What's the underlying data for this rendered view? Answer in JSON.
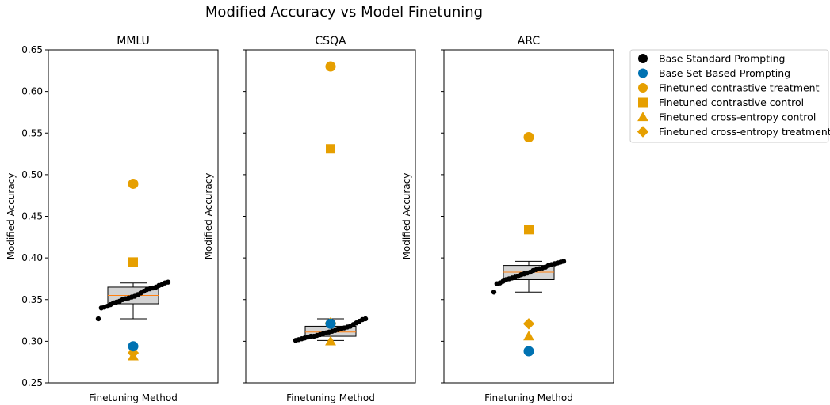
{
  "title": "Modified Accuracy vs Model Finetuning",
  "colors": {
    "base_standard": "#000000",
    "base_set": "#0072b2",
    "finetuned": "#e69f00",
    "box_fill": "#d3d3d3",
    "median": "#ff7f0e"
  },
  "legend": {
    "placement": "right-outside",
    "entries": [
      {
        "label": "Base Standard Prompting",
        "marker": "circle",
        "color": "#000000"
      },
      {
        "label": "Base Set-Based-Prompting",
        "marker": "circle",
        "color": "#0072b2"
      },
      {
        "label": "Finetuned contrastive treatment",
        "marker": "circle",
        "color": "#e69f00"
      },
      {
        "label": "Finetuned contrastive control",
        "marker": "square",
        "color": "#e69f00"
      },
      {
        "label": "Finetuned cross-entropy control",
        "marker": "triangle",
        "color": "#e69f00"
      },
      {
        "label": "Finetuned cross-entropy treatment",
        "marker": "diamond",
        "color": "#e69f00"
      }
    ]
  },
  "chart_data": [
    {
      "type": "scatter",
      "title": "MMLU",
      "xlabel": "Finetuning Method",
      "ylabel": "Modified Accuracy",
      "ylim": [
        0.25,
        0.65
      ],
      "yticks": [
        "0.25",
        "0.30",
        "0.35",
        "0.40",
        "0.45",
        "0.50",
        "0.55",
        "0.60",
        "0.65"
      ],
      "grid": false,
      "box": {
        "whisker_low": 0.327,
        "q1": 0.345,
        "median": 0.355,
        "q3": 0.365,
        "whisker_high": 0.37
      },
      "base_standard_points": [
        0.327,
        0.34,
        0.341,
        0.342,
        0.344,
        0.346,
        0.347,
        0.348,
        0.35,
        0.351,
        0.352,
        0.353,
        0.354,
        0.356,
        0.358,
        0.36,
        0.362,
        0.363,
        0.364,
        0.365,
        0.367,
        0.368,
        0.37,
        0.371
      ],
      "base_set": 0.294,
      "contrastive_treatment": 0.489,
      "contrastive_control": 0.395,
      "cross_entropy_control": 0.282,
      "cross_entropy_treatment": 0.286
    },
    {
      "type": "scatter",
      "title": "CSQA",
      "xlabel": "Finetuning Method",
      "ylabel": "Modified Accuracy",
      "ylim": [
        0.25,
        0.65
      ],
      "grid": false,
      "box": {
        "whisker_low": 0.301,
        "q1": 0.306,
        "median": 0.311,
        "q3": 0.318,
        "whisker_high": 0.327
      },
      "base_standard_points": [
        0.301,
        0.302,
        0.303,
        0.304,
        0.305,
        0.306,
        0.306,
        0.307,
        0.308,
        0.309,
        0.31,
        0.311,
        0.312,
        0.313,
        0.314,
        0.315,
        0.316,
        0.317,
        0.318,
        0.32,
        0.322,
        0.324,
        0.326,
        0.327
      ],
      "base_set": 0.321,
      "contrastive_treatment": 0.63,
      "contrastive_control": 0.531,
      "cross_entropy_control": 0.3,
      "cross_entropy_treatment": 0.322
    },
    {
      "type": "scatter",
      "title": "ARC",
      "xlabel": "Finetuning Method",
      "ylabel": "Modified Accuracy",
      "ylim": [
        0.25,
        0.65
      ],
      "grid": false,
      "box": {
        "whisker_low": 0.359,
        "q1": 0.374,
        "median": 0.383,
        "q3": 0.391,
        "whisker_high": 0.396
      },
      "base_standard_points": [
        0.359,
        0.369,
        0.37,
        0.372,
        0.374,
        0.375,
        0.376,
        0.377,
        0.378,
        0.38,
        0.381,
        0.382,
        0.383,
        0.385,
        0.386,
        0.387,
        0.388,
        0.389,
        0.391,
        0.392,
        0.393,
        0.394,
        0.395,
        0.396
      ],
      "base_set": 0.288,
      "contrastive_treatment": 0.545,
      "contrastive_control": 0.434,
      "cross_entropy_control": 0.306,
      "cross_entropy_treatment": 0.321
    }
  ]
}
